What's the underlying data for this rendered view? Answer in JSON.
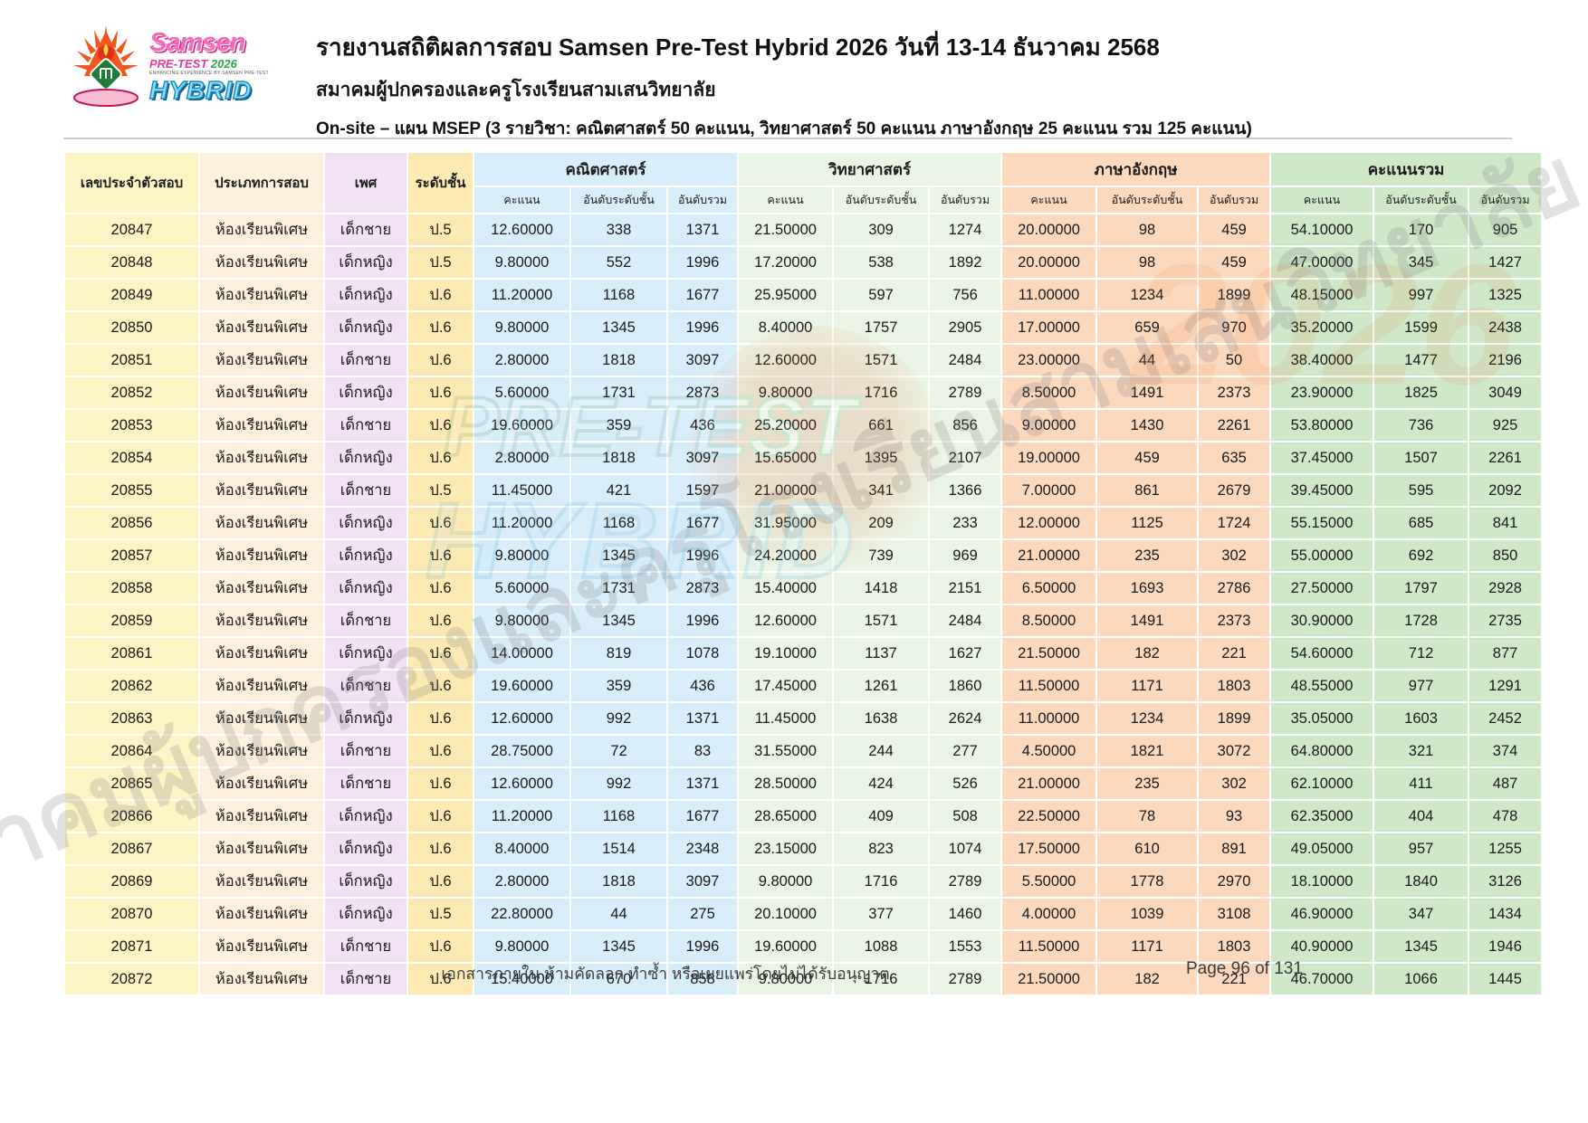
{
  "header": {
    "title": "รายงานสถิติผลการสอบ Samsen Pre-Test Hybrid 2026 วันที่ 13-14 ธันวาคม 2568",
    "subtitle": "สมาคมผู้ปกครองและครูโรงเรียนสามเสนวิทยาลัย",
    "plan_line": "On-site – แผน MSEP  (3 รายวิชา: คณิตศาสตร์ 50 คะแนน, วิทยาศาสตร์ 50 คะแนน ภาษาอังกฤษ 25 คะแนน รวม 125 คะแนน)",
    "logo": {
      "samsen": "Samsen",
      "pretest": "PRE-TEST",
      "year": "2026",
      "tagline": "ENHANCING EXPERIENCE BY SAMSEN PRE-TEST",
      "hybrid": "HYBRID"
    }
  },
  "colors": {
    "id_col": "#fdf4c3",
    "type_col": "#fdf1dd",
    "gender_col": "#f3e1f6",
    "grade_col": "#fde9b2",
    "math_col": "#d9eefb",
    "science_col": "#eaf4e5",
    "english_col": "#fcd8bd",
    "total_col": "#cfe9c8"
  },
  "table": {
    "col_headers": {
      "id": "เลขประจำตัวสอบ",
      "exam_type": "ประเภทการสอบ",
      "gender": "เพศ",
      "grade": "ระดับชั้น",
      "groups": [
        {
          "label": "คณิตศาสตร์"
        },
        {
          "label": "วิทยาศาสตร์"
        },
        {
          "label": "ภาษาอังกฤษ"
        },
        {
          "label": "คะแนนรวม"
        }
      ],
      "sub": [
        "คะแนน",
        "อันดับระดับชั้น",
        "อันดับรวม"
      ]
    },
    "rows": [
      {
        "id": "20847",
        "type": "ห้องเรียนพิเศษ",
        "gender": "เด็กชาย",
        "grade": "ป.5",
        "math": [
          "12.60000",
          "338",
          "1371"
        ],
        "science": [
          "21.50000",
          "309",
          "1274"
        ],
        "english": [
          "20.00000",
          "98",
          "459"
        ],
        "total": [
          "54.10000",
          "170",
          "905"
        ]
      },
      {
        "id": "20848",
        "type": "ห้องเรียนพิเศษ",
        "gender": "เด็กหญิง",
        "grade": "ป.5",
        "math": [
          "9.80000",
          "552",
          "1996"
        ],
        "science": [
          "17.20000",
          "538",
          "1892"
        ],
        "english": [
          "20.00000",
          "98",
          "459"
        ],
        "total": [
          "47.00000",
          "345",
          "1427"
        ]
      },
      {
        "id": "20849",
        "type": "ห้องเรียนพิเศษ",
        "gender": "เด็กหญิง",
        "grade": "ป.6",
        "math": [
          "11.20000",
          "1168",
          "1677"
        ],
        "science": [
          "25.95000",
          "597",
          "756"
        ],
        "english": [
          "11.00000",
          "1234",
          "1899"
        ],
        "total": [
          "48.15000",
          "997",
          "1325"
        ]
      },
      {
        "id": "20850",
        "type": "ห้องเรียนพิเศษ",
        "gender": "เด็กหญิง",
        "grade": "ป.6",
        "math": [
          "9.80000",
          "1345",
          "1996"
        ],
        "science": [
          "8.40000",
          "1757",
          "2905"
        ],
        "english": [
          "17.00000",
          "659",
          "970"
        ],
        "total": [
          "35.20000",
          "1599",
          "2438"
        ]
      },
      {
        "id": "20851",
        "type": "ห้องเรียนพิเศษ",
        "gender": "เด็กชาย",
        "grade": "ป.6",
        "math": [
          "2.80000",
          "1818",
          "3097"
        ],
        "science": [
          "12.60000",
          "1571",
          "2484"
        ],
        "english": [
          "23.00000",
          "44",
          "50"
        ],
        "total": [
          "38.40000",
          "1477",
          "2196"
        ]
      },
      {
        "id": "20852",
        "type": "ห้องเรียนพิเศษ",
        "gender": "เด็กหญิง",
        "grade": "ป.6",
        "math": [
          "5.60000",
          "1731",
          "2873"
        ],
        "science": [
          "9.80000",
          "1716",
          "2789"
        ],
        "english": [
          "8.50000",
          "1491",
          "2373"
        ],
        "total": [
          "23.90000",
          "1825",
          "3049"
        ]
      },
      {
        "id": "20853",
        "type": "ห้องเรียนพิเศษ",
        "gender": "เด็กชาย",
        "grade": "ป.6",
        "math": [
          "19.60000",
          "359",
          "436"
        ],
        "science": [
          "25.20000",
          "661",
          "856"
        ],
        "english": [
          "9.00000",
          "1430",
          "2261"
        ],
        "total": [
          "53.80000",
          "736",
          "925"
        ]
      },
      {
        "id": "20854",
        "type": "ห้องเรียนพิเศษ",
        "gender": "เด็กหญิง",
        "grade": "ป.6",
        "math": [
          "2.80000",
          "1818",
          "3097"
        ],
        "science": [
          "15.65000",
          "1395",
          "2107"
        ],
        "english": [
          "19.00000",
          "459",
          "635"
        ],
        "total": [
          "37.45000",
          "1507",
          "2261"
        ]
      },
      {
        "id": "20855",
        "type": "ห้องเรียนพิเศษ",
        "gender": "เด็กชาย",
        "grade": "ป.5",
        "math": [
          "11.45000",
          "421",
          "1597"
        ],
        "science": [
          "21.00000",
          "341",
          "1366"
        ],
        "english": [
          "7.00000",
          "861",
          "2679"
        ],
        "total": [
          "39.45000",
          "595",
          "2092"
        ]
      },
      {
        "id": "20856",
        "type": "ห้องเรียนพิเศษ",
        "gender": "เด็กหญิง",
        "grade": "ป.6",
        "math": [
          "11.20000",
          "1168",
          "1677"
        ],
        "science": [
          "31.95000",
          "209",
          "233"
        ],
        "english": [
          "12.00000",
          "1125",
          "1724"
        ],
        "total": [
          "55.15000",
          "685",
          "841"
        ]
      },
      {
        "id": "20857",
        "type": "ห้องเรียนพิเศษ",
        "gender": "เด็กหญิง",
        "grade": "ป.6",
        "math": [
          "9.80000",
          "1345",
          "1996"
        ],
        "science": [
          "24.20000",
          "739",
          "969"
        ],
        "english": [
          "21.00000",
          "235",
          "302"
        ],
        "total": [
          "55.00000",
          "692",
          "850"
        ]
      },
      {
        "id": "20858",
        "type": "ห้องเรียนพิเศษ",
        "gender": "เด็กหญิง",
        "grade": "ป.6",
        "math": [
          "5.60000",
          "1731",
          "2873"
        ],
        "science": [
          "15.40000",
          "1418",
          "2151"
        ],
        "english": [
          "6.50000",
          "1693",
          "2786"
        ],
        "total": [
          "27.50000",
          "1797",
          "2928"
        ]
      },
      {
        "id": "20859",
        "type": "ห้องเรียนพิเศษ",
        "gender": "เด็กชาย",
        "grade": "ป.6",
        "math": [
          "9.80000",
          "1345",
          "1996"
        ],
        "science": [
          "12.60000",
          "1571",
          "2484"
        ],
        "english": [
          "8.50000",
          "1491",
          "2373"
        ],
        "total": [
          "30.90000",
          "1728",
          "2735"
        ]
      },
      {
        "id": "20861",
        "type": "ห้องเรียนพิเศษ",
        "gender": "เด็กหญิง",
        "grade": "ป.6",
        "math": [
          "14.00000",
          "819",
          "1078"
        ],
        "science": [
          "19.10000",
          "1137",
          "1627"
        ],
        "english": [
          "21.50000",
          "182",
          "221"
        ],
        "total": [
          "54.60000",
          "712",
          "877"
        ]
      },
      {
        "id": "20862",
        "type": "ห้องเรียนพิเศษ",
        "gender": "เด็กชาย",
        "grade": "ป.6",
        "math": [
          "19.60000",
          "359",
          "436"
        ],
        "science": [
          "17.45000",
          "1261",
          "1860"
        ],
        "english": [
          "11.50000",
          "1171",
          "1803"
        ],
        "total": [
          "48.55000",
          "977",
          "1291"
        ]
      },
      {
        "id": "20863",
        "type": "ห้องเรียนพิเศษ",
        "gender": "เด็กหญิง",
        "grade": "ป.6",
        "math": [
          "12.60000",
          "992",
          "1371"
        ],
        "science": [
          "11.45000",
          "1638",
          "2624"
        ],
        "english": [
          "11.00000",
          "1234",
          "1899"
        ],
        "total": [
          "35.05000",
          "1603",
          "2452"
        ]
      },
      {
        "id": "20864",
        "type": "ห้องเรียนพิเศษ",
        "gender": "เด็กชาย",
        "grade": "ป.6",
        "math": [
          "28.75000",
          "72",
          "83"
        ],
        "science": [
          "31.55000",
          "244",
          "277"
        ],
        "english": [
          "4.50000",
          "1821",
          "3072"
        ],
        "total": [
          "64.80000",
          "321",
          "374"
        ]
      },
      {
        "id": "20865",
        "type": "ห้องเรียนพิเศษ",
        "gender": "เด็กชาย",
        "grade": "ป.6",
        "math": [
          "12.60000",
          "992",
          "1371"
        ],
        "science": [
          "28.50000",
          "424",
          "526"
        ],
        "english": [
          "21.00000",
          "235",
          "302"
        ],
        "total": [
          "62.10000",
          "411",
          "487"
        ]
      },
      {
        "id": "20866",
        "type": "ห้องเรียนพิเศษ",
        "gender": "เด็กหญิง",
        "grade": "ป.6",
        "math": [
          "11.20000",
          "1168",
          "1677"
        ],
        "science": [
          "28.65000",
          "409",
          "508"
        ],
        "english": [
          "22.50000",
          "78",
          "93"
        ],
        "total": [
          "62.35000",
          "404",
          "478"
        ]
      },
      {
        "id": "20867",
        "type": "ห้องเรียนพิเศษ",
        "gender": "เด็กหญิง",
        "grade": "ป.6",
        "math": [
          "8.40000",
          "1514",
          "2348"
        ],
        "science": [
          "23.15000",
          "823",
          "1074"
        ],
        "english": [
          "17.50000",
          "610",
          "891"
        ],
        "total": [
          "49.05000",
          "957",
          "1255"
        ]
      },
      {
        "id": "20869",
        "type": "ห้องเรียนพิเศษ",
        "gender": "เด็กหญิง",
        "grade": "ป.6",
        "math": [
          "2.80000",
          "1818",
          "3097"
        ],
        "science": [
          "9.80000",
          "1716",
          "2789"
        ],
        "english": [
          "5.50000",
          "1778",
          "2970"
        ],
        "total": [
          "18.10000",
          "1840",
          "3126"
        ]
      },
      {
        "id": "20870",
        "type": "ห้องเรียนพิเศษ",
        "gender": "เด็กหญิง",
        "grade": "ป.5",
        "math": [
          "22.80000",
          "44",
          "275"
        ],
        "science": [
          "20.10000",
          "377",
          "1460"
        ],
        "english": [
          "4.00000",
          "1039",
          "3108"
        ],
        "total": [
          "46.90000",
          "347",
          "1434"
        ]
      },
      {
        "id": "20871",
        "type": "ห้องเรียนพิเศษ",
        "gender": "เด็กชาย",
        "grade": "ป.6",
        "math": [
          "9.80000",
          "1345",
          "1996"
        ],
        "science": [
          "19.60000",
          "1088",
          "1553"
        ],
        "english": [
          "11.50000",
          "1171",
          "1803"
        ],
        "total": [
          "40.90000",
          "1345",
          "1946"
        ]
      },
      {
        "id": "20872",
        "type": "ห้องเรียนพิเศษ",
        "gender": "เด็กชาย",
        "grade": "ป.6",
        "math": [
          "15.40000",
          "670",
          "858"
        ],
        "science": [
          "9.80000",
          "1716",
          "2789"
        ],
        "english": [
          "21.50000",
          "182",
          "221"
        ],
        "total": [
          "46.70000",
          "1066",
          "1445"
        ]
      }
    ]
  },
  "footer": {
    "notice": "เอกสารภายใน ห้ามคัดลอก ทำซ้ำ หรือเผยแพร่โดยไม่ได้รับอนุญาต",
    "page": "Page 96 of 131"
  },
  "watermark": {
    "diagonal_text": "สมาคมผู้ปกครองและครูโรงเรียนสามเสนวิทยาลัย",
    "pretest": "PRE-TEST",
    "hybrid": "HYBRID",
    "year": "2026"
  }
}
